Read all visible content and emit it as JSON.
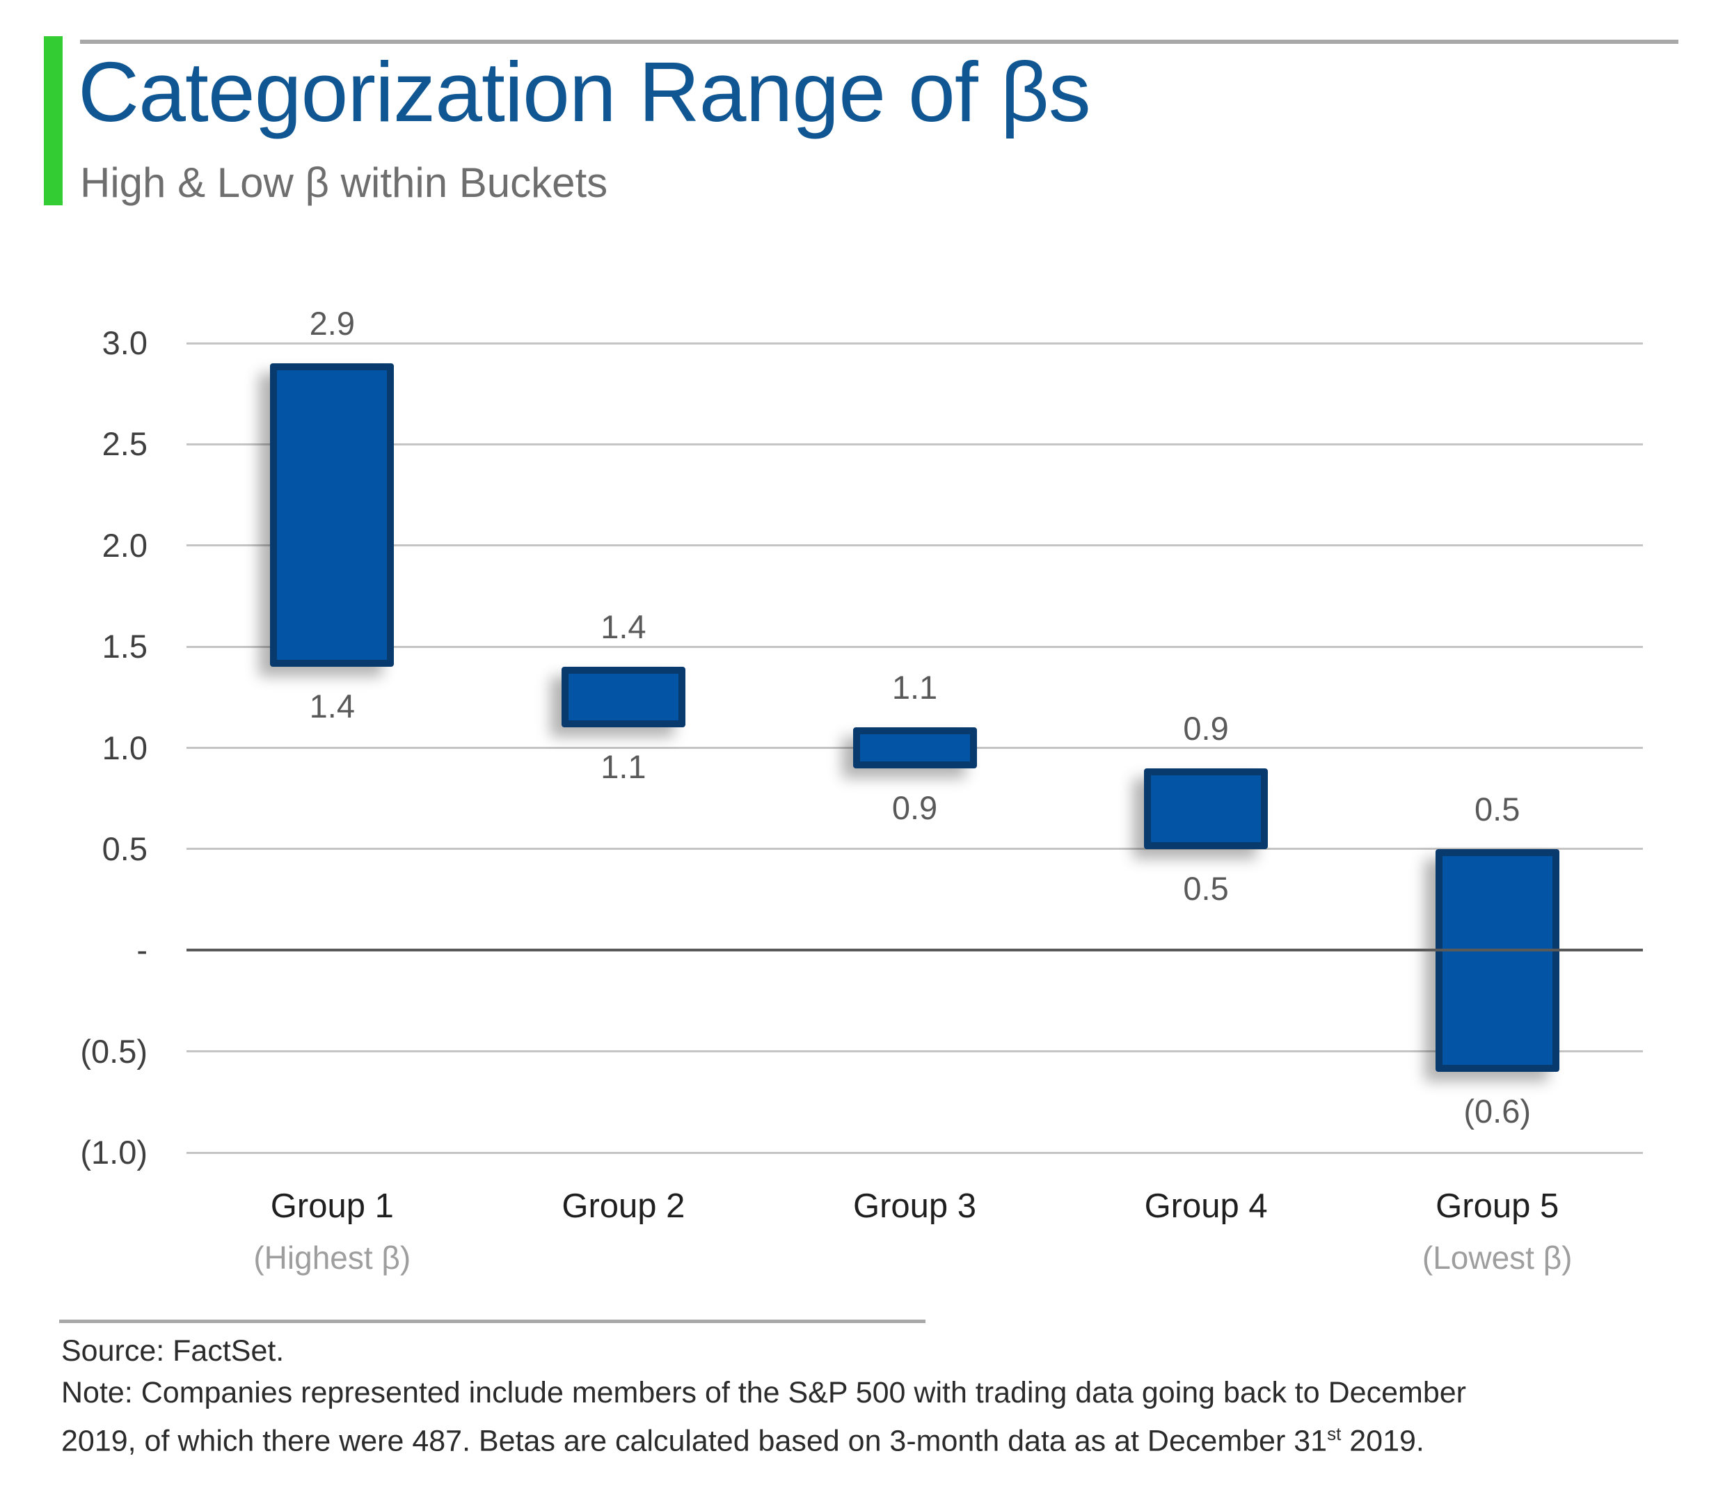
{
  "header": {
    "title": "Categorization Range of βs",
    "subtitle": "High & Low β within Buckets"
  },
  "footer": {
    "source": "Source: FactSet.",
    "note_line1": "Note: Companies represented include members of the S&P 500 with trading data going back to December",
    "note_line2_before_sup": "2019, of which there were 487. Betas are calculated based on 3-month data as at December 31",
    "note_sup": "st",
    "note_line2_after_sup": " 2019."
  },
  "colors": {
    "accent_green": "#33CC33",
    "title_blue": "#0F5692",
    "bar_fill": "#0454A6",
    "bar_border": "#083A6E",
    "gridline": "#C4C4C4",
    "zero_line": "#595959",
    "data_label": "#595959",
    "rule_gray": "#A8A8A8"
  },
  "chart_data": {
    "type": "bar",
    "subtype": "floating-range-column",
    "title": "Categorization Range of βs",
    "subtitle": "High & Low β within Buckets",
    "categories": [
      "Group 1",
      "Group 2",
      "Group 3",
      "Group 4",
      "Group 5"
    ],
    "category_sublabels": [
      "(Highest β)",
      "",
      "",
      "",
      "(Lowest β)"
    ],
    "series": [
      {
        "name": "High & Low β within bucket",
        "values": [
          {
            "low": 1.4,
            "high": 2.9,
            "low_label": "1.4",
            "high_label": "2.9"
          },
          {
            "low": 1.1,
            "high": 1.4,
            "low_label": "1.1",
            "high_label": "1.4"
          },
          {
            "low": 0.9,
            "high": 1.1,
            "low_label": "0.9",
            "high_label": "1.1"
          },
          {
            "low": 0.5,
            "high": 0.9,
            "low_label": "0.5",
            "high_label": "0.9"
          },
          {
            "low": -0.6,
            "high": 0.5,
            "low_label": "(0.6)",
            "high_label": "0.5"
          }
        ]
      }
    ],
    "ylim": [
      -1.0,
      3.0
    ],
    "y_ticks": [
      {
        "value": 3.0,
        "label": "3.0"
      },
      {
        "value": 2.5,
        "label": "2.5"
      },
      {
        "value": 2.0,
        "label": "2.0"
      },
      {
        "value": 1.5,
        "label": "1.5"
      },
      {
        "value": 1.0,
        "label": "1.0"
      },
      {
        "value": 0.5,
        "label": "0.5"
      },
      {
        "value": 0.0,
        "label": "-"
      },
      {
        "value": -0.5,
        "label": "(0.5)"
      },
      {
        "value": -1.0,
        "label": "(1.0)"
      }
    ],
    "grid": true,
    "legend": "none",
    "xlabel": "",
    "ylabel": ""
  }
}
